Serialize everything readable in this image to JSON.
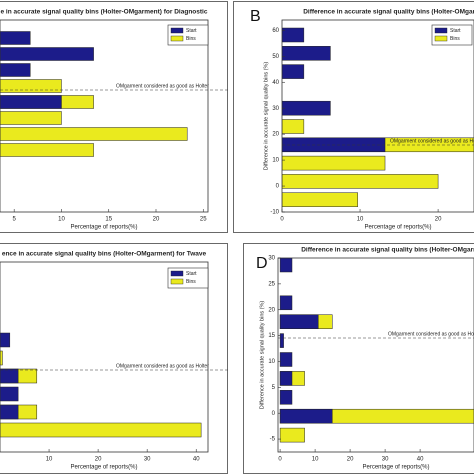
{
  "chart_data": [
    {
      "type": "barh",
      "title": "e in accurate signal quality bins (Holter-OMgarment) for Diagnostic",
      "xlabel": "Percentage of reports(%)",
      "annotation": "OMgarment considered as good as Holter",
      "categories": [
        null,
        null,
        null,
        null,
        null,
        null,
        null,
        null
      ],
      "series": [
        {
          "name": "Start",
          "color": "#1c1c8a",
          "values": [
            6.7,
            13.4,
            6.7,
            null,
            10,
            null,
            null,
            null
          ]
        },
        {
          "name": "Bins",
          "color": "#eaea1e",
          "values": [
            null,
            null,
            null,
            10,
            13.4,
            10,
            23.3,
            13.4
          ]
        }
      ],
      "xlim": [
        3.5,
        25.5
      ],
      "xticks": [
        5,
        10,
        15,
        20,
        25
      ]
    },
    {
      "type": "barh",
      "panel": "B",
      "title": "Difference in accurate signal quality bins (Holter-OMgarment)",
      "xlabel": "Percentage of reports(%)",
      "ylabel": "Difference in accurate signal quality bins (%)",
      "annotation": "OMgarment considered as good as Holter",
      "categories": [
        null,
        null,
        null,
        null,
        null,
        null,
        null,
        null,
        null,
        null
      ],
      "series": [
        {
          "name": "Start",
          "color": "#1c1c8a",
          "values": [
            2.8,
            6.2,
            2.8,
            null,
            6.2,
            null,
            13.2,
            null,
            null,
            null
          ]
        },
        {
          "name": "Bins",
          "color": "#eaea1e",
          "values": [
            null,
            null,
            null,
            null,
            null,
            2.8,
            28,
            13.2,
            20,
            9.7
          ]
        }
      ],
      "xlim": [
        0,
        24.6
      ],
      "xticks": [
        0,
        10,
        20
      ],
      "ylim": [
        -10,
        64
      ],
      "yticks": [
        -10,
        0,
        10,
        20,
        30,
        40,
        50,
        60
      ]
    },
    {
      "type": "barh",
      "title": "ence in accurate signal quality bins (Holter-OMgarment) for Twave",
      "xlabel": "Percentage of reports(%)",
      "annotation": "OMgarment considered as good as Holter",
      "categories": [
        null,
        null,
        null,
        null,
        null,
        null
      ],
      "series": [
        {
          "name": "Start",
          "color": "#1c1c8a",
          "values": [
            2,
            null,
            3.7,
            3.7,
            3.7,
            null
          ]
        },
        {
          "name": "Bins",
          "color": "#eaea1e",
          "values": [
            null,
            0.5,
            7.5,
            null,
            7.5,
            41
          ]
        }
      ],
      "xlim": [
        0,
        42.4
      ],
      "xticks": [
        10,
        20,
        30,
        40
      ]
    },
    {
      "type": "barh",
      "panel": "D",
      "title": "Difference in accurate signal quality bins (Holter-OMgarment)",
      "xlabel": "Percentage of reports(%)",
      "ylabel": "Difference in accurate signal quality bins (%)",
      "annotation": "OMgarment considered as good as Holter",
      "categories": [
        null,
        null,
        null,
        null,
        null,
        null,
        null,
        null,
        null,
        null
      ],
      "series": [
        {
          "name": "Start",
          "color": "#1c1c8a",
          "values": [
            3.4,
            null,
            3.4,
            10.9,
            1,
            3.4,
            3.4,
            3.4,
            14.9,
            null
          ]
        },
        {
          "name": "Bins",
          "color": "#eaea1e",
          "values": [
            null,
            null,
            null,
            14.9,
            null,
            null,
            7,
            null,
            56,
            7
          ]
        }
      ],
      "xlim": [
        -0.6,
        55.4
      ],
      "xticks": [
        0,
        10,
        20,
        30,
        40
      ],
      "ylim": [
        -7.5,
        30
      ],
      "yticks": [
        -5,
        0,
        5,
        10,
        15,
        20,
        25,
        30
      ]
    }
  ]
}
